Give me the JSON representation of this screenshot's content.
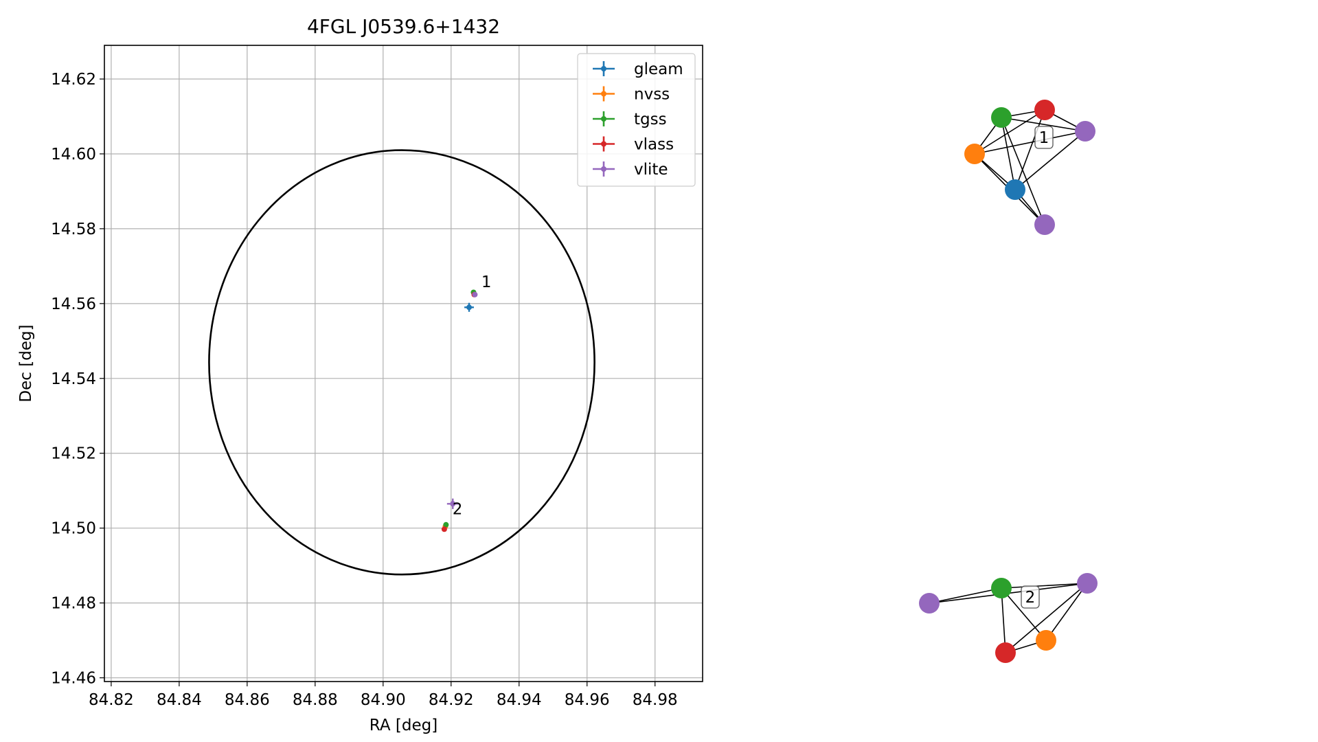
{
  "chart_data": [
    {
      "type": "scatter",
      "title": "4FGL J0539.6+1432",
      "xlabel": "RA [deg]",
      "ylabel": "Dec [deg]",
      "xlim": [
        84.818,
        84.994
      ],
      "ylim": [
        14.459,
        14.629
      ],
      "xticks": [
        "84.82",
        "84.84",
        "84.86",
        "84.88",
        "84.90",
        "84.92",
        "84.94",
        "84.96",
        "84.98"
      ],
      "yticks": [
        "14.46",
        "14.48",
        "14.50",
        "14.52",
        "14.54",
        "14.56",
        "14.58",
        "14.60",
        "14.62"
      ],
      "grid": true,
      "legend_position": "top-right",
      "circle": {
        "center": [
          84.9055,
          14.5443
        ],
        "radius": 0.0567,
        "color": "#000000"
      },
      "series": [
        {
          "name": "gleam",
          "color": "#1f77b4",
          "points": [
            {
              "x": 84.9253,
              "y": 14.559,
              "xerr": 0.0014,
              "yerr": 0.0012
            }
          ]
        },
        {
          "name": "nvss",
          "color": "#ff7f0e",
          "points": [
            {
              "x": 84.9268,
              "y": 14.5626,
              "xerr": 0.0003,
              "yerr": 0.0003
            },
            {
              "x": 84.9183,
              "y": 14.5004,
              "xerr": 0.0003,
              "yerr": 0.0003
            }
          ]
        },
        {
          "name": "tgss",
          "color": "#2ca02c",
          "points": [
            {
              "x": 84.9266,
              "y": 14.563,
              "xerr": 0.0004,
              "yerr": 0.0004
            },
            {
              "x": 84.9185,
              "y": 14.5009,
              "xerr": 0.0004,
              "yerr": 0.0004
            }
          ]
        },
        {
          "name": "vlass",
          "color": "#d62728",
          "points": [
            {
              "x": 84.9268,
              "y": 14.5624,
              "xerr": 0.0002,
              "yerr": 0.0002
            },
            {
              "x": 84.918,
              "y": 14.4997,
              "xerr": 0.0002,
              "yerr": 0.0002
            }
          ]
        },
        {
          "name": "vlite",
          "color": "#9467bd",
          "points": [
            {
              "x": 84.927,
              "y": 14.5624,
              "xerr": 0.0006,
              "yerr": 0.0006
            },
            {
              "x": 84.9205,
              "y": 14.5065,
              "xerr": 0.0017,
              "yerr": 0.0014
            }
          ]
        }
      ],
      "annotations": [
        {
          "text": "1",
          "x": 84.9285,
          "y": 14.564
        },
        {
          "text": "2",
          "x": 84.92,
          "y": 14.5033
        }
      ]
    },
    {
      "type": "network",
      "groups": [
        {
          "label": "1",
          "nodes": [
            {
              "color": "#2ca02c"
            },
            {
              "color": "#d62728"
            },
            {
              "color": "#9467bd"
            },
            {
              "color": "#ff7f0e"
            },
            {
              "color": "#1f77b4"
            },
            {
              "color": "#9467bd"
            }
          ],
          "edges": [
            [
              0,
              1
            ],
            [
              0,
              2
            ],
            [
              0,
              3
            ],
            [
              0,
              4
            ],
            [
              0,
              5
            ],
            [
              1,
              2
            ],
            [
              1,
              3
            ],
            [
              1,
              4
            ],
            [
              2,
              3
            ],
            [
              2,
              4
            ],
            [
              3,
              4
            ],
            [
              3,
              5
            ],
            [
              4,
              5
            ]
          ]
        },
        {
          "label": "2",
          "nodes": [
            {
              "color": "#9467bd"
            },
            {
              "color": "#2ca02c"
            },
            {
              "color": "#9467bd"
            },
            {
              "color": "#ff7f0e"
            },
            {
              "color": "#d62728"
            }
          ],
          "edges": [
            [
              0,
              1
            ],
            [
              0,
              2
            ],
            [
              1,
              2
            ],
            [
              1,
              3
            ],
            [
              1,
              4
            ],
            [
              2,
              3
            ],
            [
              2,
              4
            ],
            [
              3,
              4
            ]
          ]
        }
      ]
    }
  ]
}
